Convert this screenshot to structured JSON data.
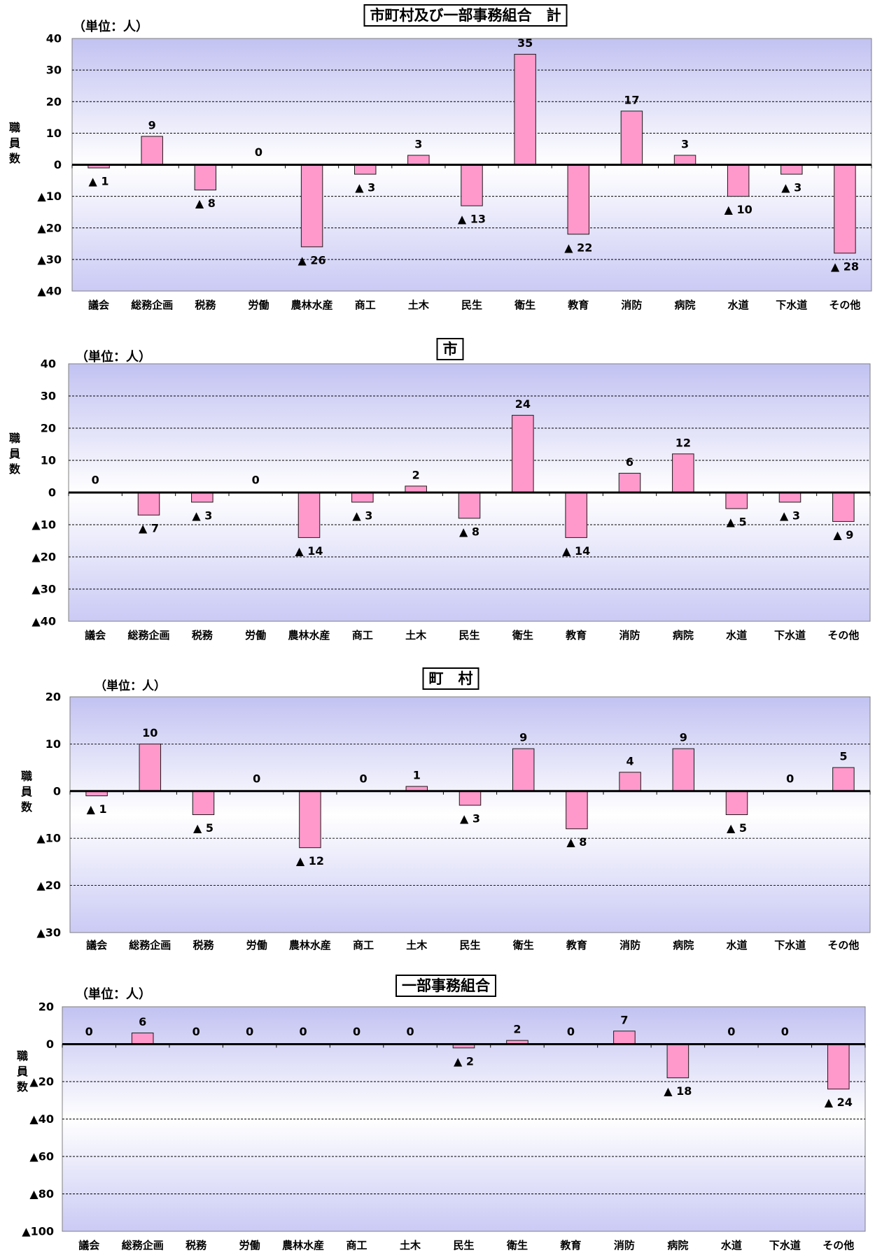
{
  "colors": {
    "bar_fill": "#ff99cc",
    "bar_stroke": "#1a1a1a",
    "grid": "#000000",
    "zero_line": "#000000",
    "plot_border": "#808080",
    "plot_bg_top": "#c2c2f2",
    "plot_bg_mid": "#ffffff",
    "plot_bg_bottom": "#cacaf5"
  },
  "chart_data": [
    {
      "type": "bar",
      "title": "市町村及び一部事務組合　計",
      "unit_label": "（単位：人）",
      "ylabel": "職員数",
      "categories": [
        "議会",
        "総務企画",
        "税務",
        "労働",
        "農林水産",
        "商工",
        "土木",
        "民生",
        "衛生",
        "教育",
        "消防",
        "病院",
        "水道",
        "下水道",
        "その他"
      ],
      "values": [
        -1,
        9,
        -8,
        0,
        -26,
        -3,
        3,
        -13,
        35,
        -22,
        17,
        3,
        -10,
        -3,
        -28
      ],
      "data_labels": [
        "▲ 1",
        "9",
        "▲ 8",
        "0",
        "▲ 26",
        "▲ 3",
        "3",
        "▲ 13",
        "35",
        "▲ 22",
        "17",
        "3",
        "▲ 10",
        "▲ 3",
        "▲ 28"
      ],
      "ylim": [
        -40,
        40
      ],
      "yticks": [
        40,
        30,
        20,
        10,
        0,
        -10,
        -20,
        -30,
        -40
      ],
      "ytick_labels": [
        "40",
        "30",
        "20",
        "10",
        "0",
        "▲10",
        "▲20",
        "▲30",
        "▲40"
      ],
      "grid": true
    },
    {
      "type": "bar",
      "title": "市",
      "unit_label": "（単位：人）",
      "ylabel": "職員数",
      "categories": [
        "議会",
        "総務企画",
        "税務",
        "労働",
        "農林水産",
        "商工",
        "土木",
        "民生",
        "衛生",
        "教育",
        "消防",
        "病院",
        "水道",
        "下水道",
        "その他"
      ],
      "values": [
        0,
        -7,
        -3,
        0,
        -14,
        -3,
        2,
        -8,
        24,
        -14,
        6,
        12,
        -5,
        -3,
        -9
      ],
      "data_labels": [
        "0",
        "▲ 7",
        "▲ 3",
        "0",
        "▲ 14",
        "▲ 3",
        "2",
        "▲ 8",
        "24",
        "▲ 14",
        "6",
        "12",
        "▲ 5",
        "▲ 3",
        "▲ 9"
      ],
      "ylim": [
        -40,
        40
      ],
      "yticks": [
        40,
        30,
        20,
        10,
        0,
        -10,
        -20,
        -30,
        -40
      ],
      "ytick_labels": [
        "40",
        "30",
        "20",
        "10",
        "0",
        "▲10",
        "▲20",
        "▲30",
        "▲40"
      ],
      "grid": true
    },
    {
      "type": "bar",
      "title": "町　村",
      "unit_label": "（単位：人）",
      "ylabel": "職員数",
      "categories": [
        "議会",
        "総務企画",
        "税務",
        "労働",
        "農林水産",
        "商工",
        "土木",
        "民生",
        "衛生",
        "教育",
        "消防",
        "病院",
        "水道",
        "下水道",
        "その他"
      ],
      "values": [
        -1,
        10,
        -5,
        0,
        -12,
        0,
        1,
        -3,
        9,
        -8,
        4,
        9,
        -5,
        0,
        5
      ],
      "data_labels": [
        "▲ 1",
        "10",
        "▲ 5",
        "0",
        "▲ 12",
        "0",
        "1",
        "▲ 3",
        "9",
        "▲ 8",
        "4",
        "9",
        "▲ 5",
        "0",
        "5"
      ],
      "ylim": [
        -30,
        20
      ],
      "yticks": [
        20,
        10,
        0,
        -10,
        -20,
        -30
      ],
      "ytick_labels": [
        "20",
        "10",
        "0",
        "▲10",
        "▲20",
        "▲30"
      ],
      "grid": true
    },
    {
      "type": "bar",
      "title": "一部事務組合",
      "unit_label": "（単位：人）",
      "ylabel": "職員数",
      "categories": [
        "議会",
        "総務企画",
        "税務",
        "労働",
        "農林水産",
        "商工",
        "土木",
        "民生",
        "衛生",
        "教育",
        "消防",
        "病院",
        "水道",
        "下水道",
        "その他"
      ],
      "values": [
        0,
        6,
        0,
        0,
        0,
        0,
        0,
        -2,
        2,
        0,
        7,
        -18,
        0,
        0,
        -24
      ],
      "data_labels": [
        "0",
        "6",
        "0",
        "0",
        "0",
        "0",
        "0",
        "▲ 2",
        "2",
        "0",
        "7",
        "▲ 18",
        "0",
        "0",
        "▲ 24"
      ],
      "ylim": [
        -100,
        20
      ],
      "yticks": [
        20,
        0,
        -20,
        -40,
        -60,
        -80,
        -100
      ],
      "ytick_labels": [
        "20",
        "0",
        "▲20",
        "▲40",
        "▲60",
        "▲80",
        "▲100"
      ],
      "grid": true
    }
  ]
}
